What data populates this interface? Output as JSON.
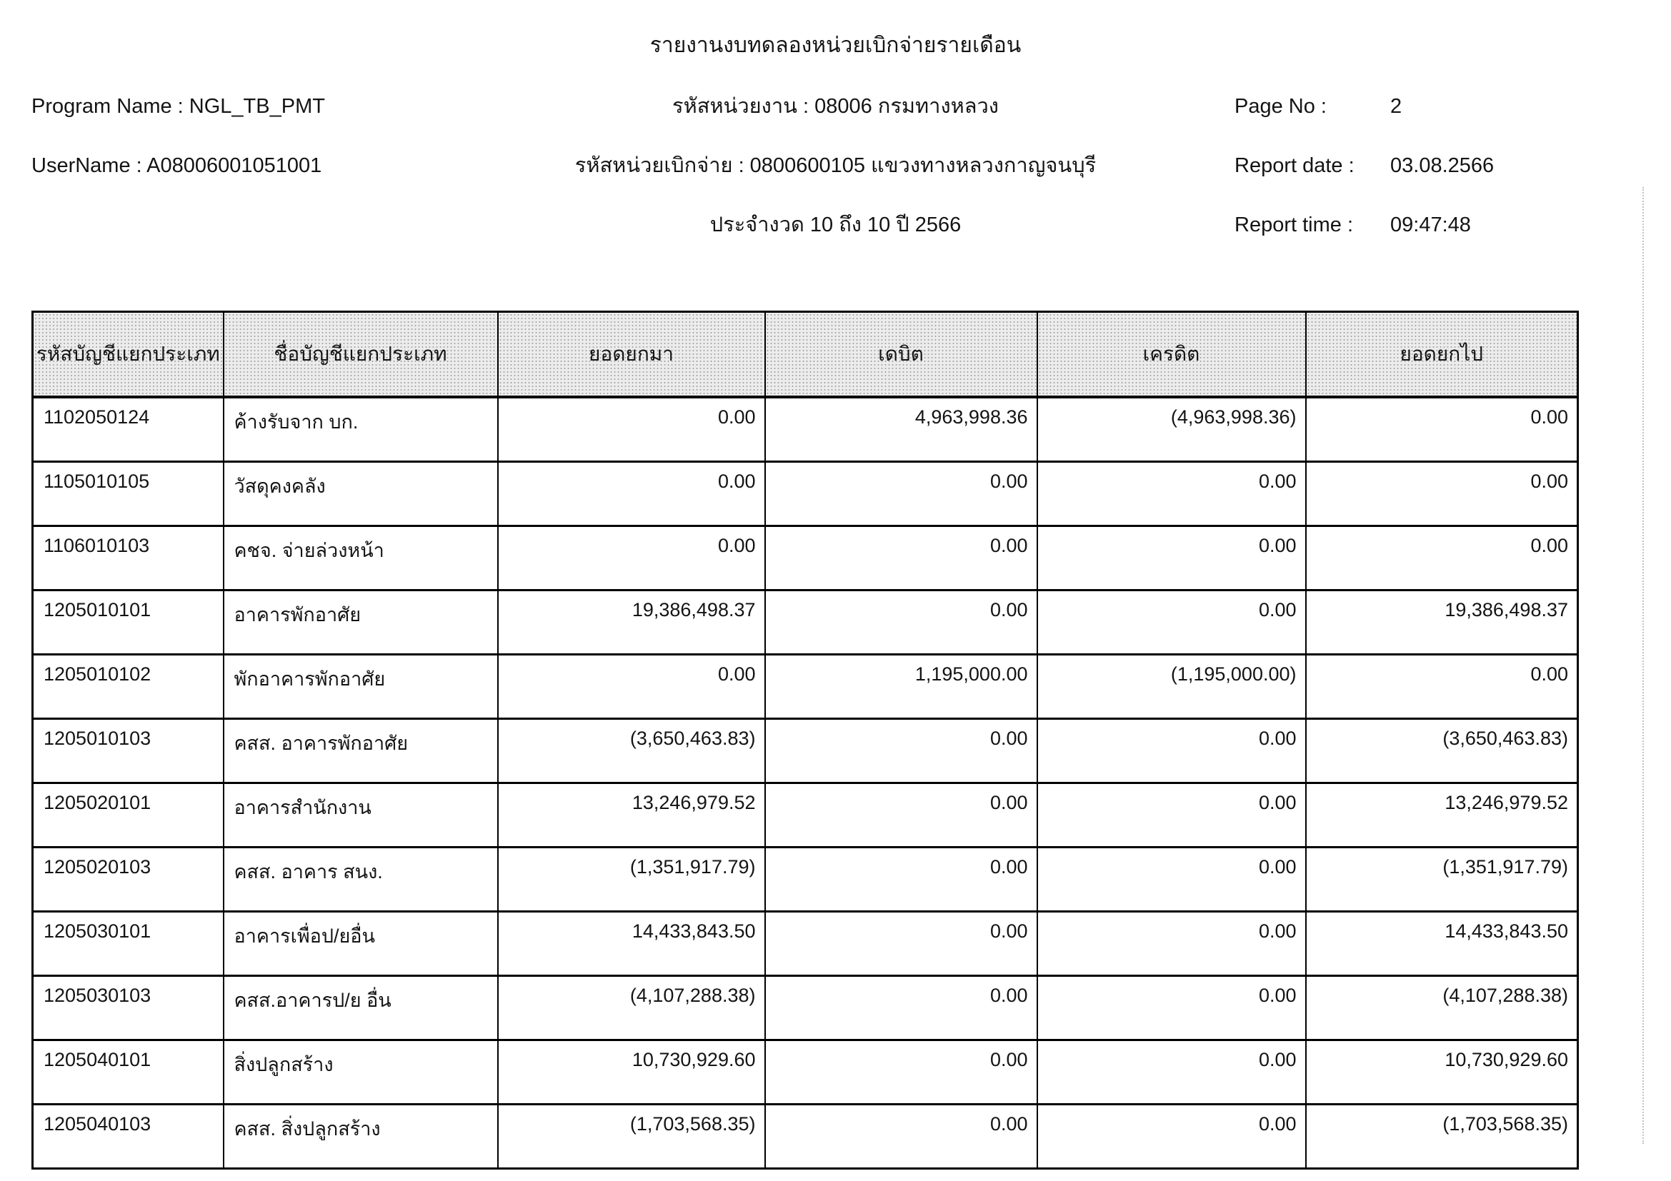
{
  "report": {
    "title": "รายงานงบทดลองหน่วยเบิกจ่ายรายเดือน",
    "program_name_label": "Program Name :",
    "program_name_value": "NGL_TB_PMT",
    "username_label": "UserName :",
    "username_value": "A08006001051001",
    "agency_line": "รหัสหน่วยงาน : 08006 กรมทางหลวง",
    "disbursement_line": "รหัสหน่วยเบิกจ่าย : 0800600105 แขวงทางหลวงกาญจนบุรี",
    "period_line": "ประจำงวด 10 ถึง 10 ปี 2566",
    "page_no_label": "Page No :",
    "page_no_value": "2",
    "report_date_label": "Report date :",
    "report_date_value": "03.08.2566",
    "report_time_label": "Report time :",
    "report_time_value": "09:47:48"
  },
  "table": {
    "columns": [
      "รหัสบัญชีแยกประเภท",
      "ชื่อบัญชีแยกประเภท",
      "ยอดยกมา",
      "เดบิต",
      "เครดิต",
      "ยอดยกไป"
    ],
    "rows": [
      [
        "1102050124",
        "ค้างรับจาก บก.",
        "0.00",
        "4,963,998.36",
        "(4,963,998.36)",
        "0.00"
      ],
      [
        "1105010105",
        "วัสดุคงคลัง",
        "0.00",
        "0.00",
        "0.00",
        "0.00"
      ],
      [
        "1106010103",
        "คชจ. จ่ายล่วงหน้า",
        "0.00",
        "0.00",
        "0.00",
        "0.00"
      ],
      [
        "1205010101",
        "อาคารพักอาศัย",
        "19,386,498.37",
        "0.00",
        "0.00",
        "19,386,498.37"
      ],
      [
        "1205010102",
        "พักอาคารพักอาศัย",
        "0.00",
        "1,195,000.00",
        "(1,195,000.00)",
        "0.00"
      ],
      [
        "1205010103",
        "คสส. อาคารพักอาศัย",
        "(3,650,463.83)",
        "0.00",
        "0.00",
        "(3,650,463.83)"
      ],
      [
        "1205020101",
        "อาคารสำนักงาน",
        "13,246,979.52",
        "0.00",
        "0.00",
        "13,246,979.52"
      ],
      [
        "1205020103",
        "คสส. อาคาร สนง.",
        "(1,351,917.79)",
        "0.00",
        "0.00",
        "(1,351,917.79)"
      ],
      [
        "1205030101",
        "อาคารเพื่อป/ยอื่น",
        "14,433,843.50",
        "0.00",
        "0.00",
        "14,433,843.50"
      ],
      [
        "1205030103",
        "คสส.อาคารป/ย อื่น",
        "(4,107,288.38)",
        "0.00",
        "0.00",
        "(4,107,288.38)"
      ],
      [
        "1205040101",
        "สิ่งปลูกสร้าง",
        "10,730,929.60",
        "0.00",
        "0.00",
        "10,730,929.60"
      ],
      [
        "1205040103",
        "คสส. สิ่งปลูกสร้าง",
        "(1,703,568.35)",
        "0.00",
        "0.00",
        "(1,703,568.35)"
      ]
    ]
  }
}
